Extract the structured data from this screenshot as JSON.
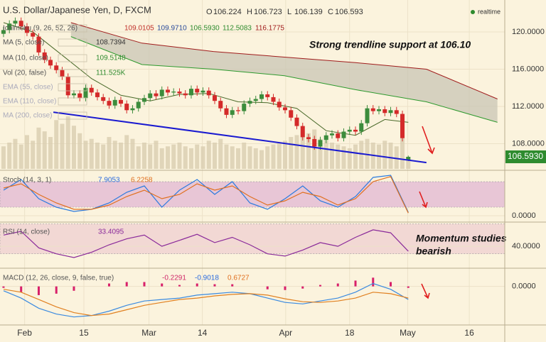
{
  "header": {
    "title": "U.S. Dollar/Japanese Yen, D, FXCM",
    "ohlc": [
      "O",
      "106.224",
      "H",
      "106.723",
      "L",
      "106.139",
      "C",
      "106.593"
    ],
    "realtime": "realtime"
  },
  "chart_data": [
    {
      "type": "candlestick",
      "xlim": [
        -0.6,
        85.45
      ],
      "xticks": [
        {
          "value": 3.6,
          "label": "Feb"
        },
        {
          "value": 13.7,
          "label": "15"
        },
        {
          "value": 24.8,
          "label": "Mar"
        },
        {
          "value": 33.9,
          "label": "14"
        },
        {
          "value": 48.1,
          "label": "Apr"
        },
        {
          "value": 59.0,
          "label": "18"
        },
        {
          "value": 68.9,
          "label": "May"
        },
        {
          "value": 79.4,
          "label": "16"
        }
      ],
      "ylim": [
        105.3,
        123.43
      ],
      "yticks": [
        {
          "value": 108,
          "label": "108.0000"
        },
        {
          "value": 112,
          "label": "112.0000"
        },
        {
          "value": 116,
          "label": "116.0000"
        },
        {
          "value": 120,
          "label": "120.0000"
        }
      ],
      "up_color": "#3c8c3c",
      "down_color": "#d42a2a",
      "ohlc": [
        [
          119.8,
          120.55,
          119.45,
          120.2
        ],
        [
          120.2,
          121.25,
          119.85,
          120.9
        ],
        [
          120.9,
          121.55,
          120.55,
          121.2
        ],
        [
          121.2,
          121.55,
          120.25,
          120.6
        ],
        [
          120.6,
          120.95,
          119.55,
          119.9
        ],
        [
          119.9,
          120.25,
          119.15,
          119.5
        ],
        [
          119.5,
          119.85,
          117.45,
          117.8
        ],
        [
          117.8,
          118.15,
          116.65,
          117.0
        ],
        [
          117.0,
          117.35,
          116.05,
          116.4
        ],
        [
          116.4,
          116.75,
          115.55,
          115.9
        ],
        [
          115.9,
          116.25,
          114.85,
          115.2
        ],
        [
          115.2,
          115.55,
          112.85,
          113.2
        ],
        [
          113.2,
          113.75,
          112.85,
          113.4
        ],
        [
          113.4,
          113.75,
          112.55,
          112.9
        ],
        [
          112.9,
          114.35,
          112.55,
          114.0
        ],
        [
          114.0,
          114.35,
          113.15,
          113.5
        ],
        [
          113.5,
          113.85,
          112.65,
          113.0
        ],
        [
          113.0,
          113.35,
          112.25,
          112.6
        ],
        [
          112.6,
          112.95,
          111.75,
          112.1
        ],
        [
          112.1,
          113.05,
          111.75,
          112.7
        ],
        [
          112.7,
          113.05,
          111.95,
          112.3
        ],
        [
          112.3,
          112.65,
          111.25,
          111.6
        ],
        [
          111.6,
          112.15,
          111.25,
          111.8
        ],
        [
          111.8,
          112.85,
          111.45,
          112.5
        ],
        [
          112.5,
          113.25,
          112.15,
          112.9
        ],
        [
          112.9,
          113.75,
          112.55,
          113.4
        ],
        [
          113.4,
          113.75,
          112.75,
          113.1
        ],
        [
          113.1,
          114.15,
          112.75,
          113.8
        ],
        [
          113.8,
          114.15,
          113.15,
          113.5
        ],
        [
          113.5,
          113.95,
          113.15,
          113.6
        ],
        [
          113.6,
          113.95,
          113.05,
          113.4
        ],
        [
          113.4,
          113.75,
          112.85,
          113.2
        ],
        [
          113.2,
          114.25,
          112.85,
          113.9
        ],
        [
          113.9,
          114.25,
          113.15,
          113.5
        ],
        [
          113.5,
          114.05,
          113.15,
          113.7
        ],
        [
          113.7,
          114.05,
          112.85,
          113.2
        ],
        [
          113.2,
          113.55,
          112.25,
          112.6
        ],
        [
          112.6,
          112.95,
          111.45,
          111.8
        ],
        [
          111.8,
          112.15,
          110.75,
          111.1
        ],
        [
          111.1,
          111.95,
          110.75,
          111.6
        ],
        [
          111.6,
          111.95,
          111.15,
          111.5
        ],
        [
          111.5,
          112.65,
          111.15,
          112.3
        ],
        [
          112.3,
          112.95,
          111.95,
          112.6
        ],
        [
          112.6,
          113.15,
          112.25,
          112.8
        ],
        [
          112.8,
          113.65,
          112.45,
          113.3
        ],
        [
          113.3,
          113.65,
          112.65,
          113.0
        ],
        [
          113.0,
          113.35,
          112.15,
          112.5
        ],
        [
          112.5,
          112.85,
          111.55,
          111.9
        ],
        [
          111.9,
          112.25,
          111.25,
          111.6
        ],
        [
          111.6,
          111.95,
          110.45,
          110.8
        ],
        [
          110.8,
          111.15,
          109.55,
          109.9
        ],
        [
          109.9,
          110.25,
          108.35,
          108.7
        ],
        [
          108.7,
          109.05,
          108.15,
          108.5
        ],
        [
          108.5,
          108.85,
          107.35,
          107.7
        ],
        [
          107.7,
          108.75,
          107.35,
          108.4
        ],
        [
          108.4,
          109.25,
          108.05,
          108.9
        ],
        [
          108.9,
          109.45,
          108.55,
          109.1
        ],
        [
          109.1,
          109.45,
          108.25,
          108.6
        ],
        [
          108.6,
          109.65,
          108.25,
          109.3
        ],
        [
          109.3,
          109.85,
          108.95,
          109.5
        ],
        [
          109.5,
          109.85,
          108.95,
          109.3
        ],
        [
          109.3,
          110.55,
          108.95,
          110.2
        ],
        [
          110.2,
          112.15,
          109.85,
          111.8
        ],
        [
          111.8,
          112.15,
          111.15,
          111.5
        ],
        [
          111.5,
          112.05,
          111.15,
          111.7
        ],
        [
          111.7,
          112.05,
          110.95,
          111.3
        ],
        [
          111.3,
          111.95,
          110.95,
          111.6
        ],
        [
          111.6,
          111.95,
          110.85,
          111.2
        ],
        [
          111.2,
          111.55,
          108.25,
          108.6
        ],
        [
          106.224,
          106.723,
          106.139,
          106.593
        ]
      ],
      "volume": [
        120,
        140,
        160,
        130,
        180,
        150,
        220,
        200,
        170,
        260,
        240,
        280,
        230,
        190,
        150,
        160,
        140,
        130,
        170,
        150,
        140,
        180,
        160,
        120,
        140,
        130,
        150,
        110,
        120,
        130,
        140,
        120,
        110,
        130,
        120,
        150,
        140,
        160,
        130,
        120,
        110,
        140,
        120,
        110,
        100,
        120,
        130,
        140,
        150,
        170,
        180,
        200,
        190,
        210,
        160,
        150,
        140,
        130,
        120,
        110,
        130,
        150,
        160,
        140,
        130,
        150,
        140,
        120,
        170,
        60
      ],
      "volume_ylim": [
        0,
        900
      ],
      "volume_color": "#d9cdb0",
      "cloud_color": "#c9c5b4",
      "lines": [
        {
          "color": "#2e9a2e",
          "x": [
            11.5,
            23.6,
            35.8,
            47.9,
            60,
            72.1,
            84.2
          ],
          "values": [
            119.5,
            116.5,
            116.0,
            115.3,
            113.8,
            112.5,
            110.3
          ]
        },
        {
          "color": "#a01c1c",
          "x": [
            11.5,
            23.6,
            35.8,
            47.9,
            60,
            72.1,
            84.2
          ],
          "values": [
            121.0,
            118.8,
            117.9,
            117.3,
            116.7,
            116.0,
            112.8
          ]
        },
        {
          "color": "#4a6a2a",
          "x": [
            0,
            5,
            10,
            15,
            20,
            25,
            30,
            35,
            40,
            45,
            50,
            55,
            60,
            65,
            69
          ],
          "values": [
            121,
            120,
            117.5,
            115,
            113.2,
            112.6,
            113.3,
            113.4,
            112.5,
            112.4,
            111.8,
            109.4,
            108.9,
            110.6,
            110.3
          ]
        }
      ],
      "trendline": {
        "color": "#1a1ad0",
        "x": [
          8.5,
          72.1
        ],
        "values": [
          111.39,
          105.98
        ]
      },
      "last_price": {
        "value": 106.593,
        "label": "106.5930",
        "color": "#2e8b2e"
      },
      "legends": [
        {
          "label": "Ichimoku (9, 26, 52, 26)",
          "values": [
            "109.0105",
            "109.9710",
            "106.5930",
            "112.5083",
            "116.1775"
          ],
          "colors": [
            "#c0302a",
            "#2a4a9a",
            "#2e8b2e",
            "#2e8b2e",
            "#a01c1c"
          ]
        },
        {
          "label": "MA (5, close)",
          "values": [
            "108.7394"
          ],
          "colors": [
            "#333333"
          ]
        },
        {
          "label": "MA (10, close)",
          "values": [
            "109.5148"
          ],
          "colors": [
            "#2e8b2e"
          ]
        },
        {
          "label": "Vol (20, false)",
          "values": [
            "111.525K"
          ],
          "colors": [
            "#2e8b2e"
          ]
        },
        {
          "label": "EMA (55, close)",
          "values": [],
          "colors": []
        },
        {
          "label": "EMA (110, close)",
          "values": [],
          "colors": []
        },
        {
          "label": "MA (200, close)",
          "values": [],
          "colors": []
        }
      ],
      "annotation": "Strong trendline support at 106.10"
    },
    {
      "type": "line",
      "title": "Stoch (14, 3, 1)",
      "legend_values": [
        "7.9053",
        "6.2258"
      ],
      "legend_colors": [
        "#2a6adf",
        "#e07020"
      ],
      "ylim": [
        -15,
        106.7
      ],
      "yticks": [
        {
          "value": 0,
          "label": "0.0000"
        }
      ],
      "band": [
        20,
        80
      ],
      "band_color": "#e8c6d6",
      "series": [
        {
          "color": "#2a7adf",
          "x": [
            0,
            3,
            6,
            9,
            12,
            15,
            18,
            21,
            24,
            27,
            30,
            33,
            36,
            39,
            42,
            45,
            48,
            51,
            54,
            57,
            60,
            63,
            66,
            69
          ],
          "values": [
            60,
            85,
            40,
            20,
            10,
            15,
            30,
            55,
            70,
            20,
            60,
            85,
            50,
            80,
            30,
            15,
            40,
            70,
            35,
            20,
            45,
            90,
            95,
            7.9
          ]
        },
        {
          "color": "#e07020",
          "x": [
            0,
            3,
            6,
            9,
            12,
            15,
            18,
            21,
            24,
            27,
            30,
            33,
            36,
            39,
            42,
            45,
            48,
            51,
            54,
            57,
            60,
            63,
            66,
            69
          ],
          "values": [
            65,
            75,
            50,
            30,
            15,
            15,
            25,
            45,
            60,
            40,
            50,
            75,
            60,
            70,
            45,
            25,
            35,
            55,
            45,
            25,
            40,
            80,
            92,
            6.2
          ]
        }
      ]
    },
    {
      "type": "line",
      "title": "RSI (14, close)",
      "legend_values": [
        "33.4095"
      ],
      "legend_colors": [
        "#8a2a9a"
      ],
      "ylim": [
        10.8,
        72.3
      ],
      "yticks": [
        {
          "value": 40,
          "label": "40.0000"
        }
      ],
      "band": [
        30,
        70
      ],
      "band_color": "#f2d8d4",
      "series": [
        {
          "color": "#8a2a9a",
          "x": [
            0,
            3,
            6,
            9,
            12,
            15,
            18,
            21,
            24,
            27,
            30,
            33,
            36,
            39,
            42,
            45,
            48,
            51,
            54,
            57,
            60,
            63,
            66,
            69
          ],
          "values": [
            55,
            60,
            38,
            30,
            25,
            32,
            42,
            50,
            55,
            40,
            48,
            56,
            45,
            52,
            42,
            30,
            27,
            35,
            45,
            40,
            52,
            62,
            58,
            33.4
          ]
        }
      ],
      "annotation": [
        "Momentum studies",
        "bearish"
      ]
    },
    {
      "type": "macd",
      "title": "MACD (12, 26, close, 9, false, true)",
      "legend_values": [
        "-0.2291",
        "-0.9018",
        "0.6727"
      ],
      "legend_colors": [
        "#d02a6a",
        "#2a6adf",
        "#e07020"
      ],
      "ylim": [
        -2.65,
        1.25
      ],
      "yticks": [
        {
          "value": 0,
          "label": "0.0000"
        }
      ],
      "hist_color": "#d8206a",
      "hist": {
        "x": [
          0,
          3,
          6,
          9,
          12,
          15,
          18,
          21,
          24,
          27,
          30,
          33,
          36,
          39,
          42,
          45,
          48,
          51,
          54,
          57,
          60,
          63,
          66,
          69
        ],
        "values": [
          -0.1,
          -0.4,
          -0.6,
          -0.5,
          -0.3,
          0,
          0.2,
          0.3,
          0.3,
          0.2,
          0.1,
          0.2,
          0.15,
          0.15,
          0,
          -0.2,
          -0.25,
          -0.15,
          0.1,
          0.2,
          0.4,
          0.6,
          0.3,
          -0.1
        ]
      },
      "series": [
        {
          "color": "#3a8ae0",
          "x": [
            0,
            3,
            6,
            9,
            12,
            15,
            18,
            21,
            24,
            27,
            30,
            33,
            36,
            39,
            42,
            45,
            48,
            51,
            54,
            57,
            60,
            63,
            66,
            69
          ],
          "values": [
            -0.3,
            -0.8,
            -1.5,
            -1.9,
            -2.1,
            -2.0,
            -1.7,
            -1.3,
            -1.0,
            -0.9,
            -0.8,
            -0.6,
            -0.5,
            -0.4,
            -0.5,
            -0.8,
            -1.1,
            -1.2,
            -1.0,
            -0.8,
            -0.4,
            0.2,
            -0.2,
            -0.9
          ]
        },
        {
          "color": "#e08020",
          "x": [
            0,
            3,
            6,
            9,
            12,
            15,
            18,
            21,
            24,
            27,
            30,
            33,
            36,
            39,
            42,
            45,
            48,
            51,
            54,
            57,
            60,
            63,
            66,
            69
          ],
          "values": [
            -0.2,
            -0.4,
            -0.9,
            -1.4,
            -1.8,
            -2.0,
            -1.9,
            -1.6,
            -1.3,
            -1.1,
            -0.9,
            -0.8,
            -0.65,
            -0.55,
            -0.5,
            -0.6,
            -0.85,
            -1.05,
            -1.1,
            -1.0,
            -0.8,
            -0.4,
            -0.5,
            -0.8
          ]
        }
      ]
    }
  ]
}
